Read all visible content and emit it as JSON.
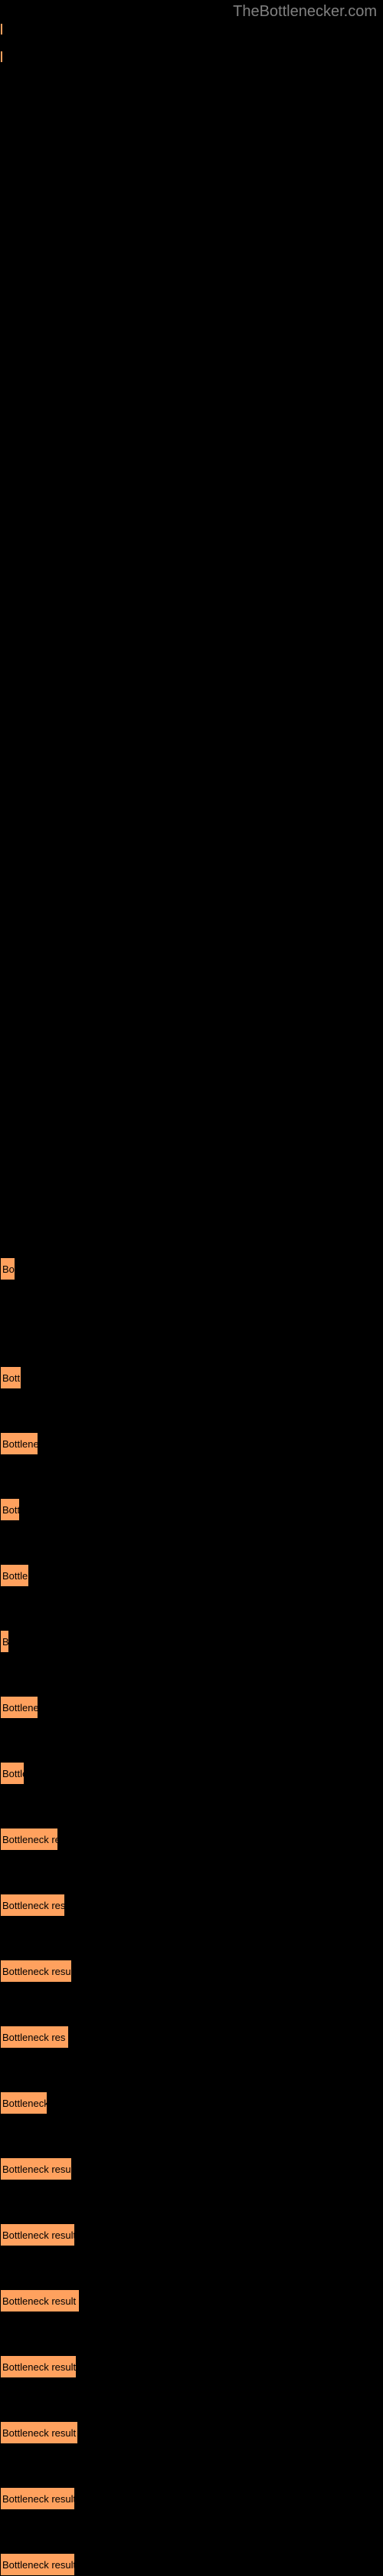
{
  "watermark": "TheBottlenecker.com",
  "chart": {
    "type": "bar",
    "background_color": "#000000",
    "bar_color": "#ffa15e",
    "bar_border_color": "#000000",
    "text_color": "#000000",
    "watermark_color": "#808080",
    "bars": [
      {
        "width": 4,
        "height": 16,
        "label": "",
        "margin_bottom": 20
      },
      {
        "width": 2,
        "height": 16,
        "label": "",
        "margin_bottom": 1558
      },
      {
        "width": 20,
        "height": 30,
        "label": "Bo",
        "margin_bottom": 112
      },
      {
        "width": 28,
        "height": 30,
        "label": "Bott",
        "margin_bottom": 56
      },
      {
        "width": 50,
        "height": 30,
        "label": "Bottlene",
        "margin_bottom": 56
      },
      {
        "width": 26,
        "height": 30,
        "label": "Bott",
        "margin_bottom": 56
      },
      {
        "width": 38,
        "height": 30,
        "label": "Bottle",
        "margin_bottom": 56
      },
      {
        "width": 12,
        "height": 30,
        "label": "B",
        "margin_bottom": 56
      },
      {
        "width": 50,
        "height": 30,
        "label": "Bottlene",
        "margin_bottom": 56
      },
      {
        "width": 32,
        "height": 30,
        "label": "Bottle",
        "margin_bottom": 56
      },
      {
        "width": 76,
        "height": 30,
        "label": "Bottleneck re",
        "margin_bottom": 56
      },
      {
        "width": 85,
        "height": 30,
        "label": "Bottleneck res",
        "margin_bottom": 56
      },
      {
        "width": 94,
        "height": 30,
        "label": "Bottleneck resu",
        "margin_bottom": 56
      },
      {
        "width": 90,
        "height": 30,
        "label": "Bottleneck res",
        "margin_bottom": 56
      },
      {
        "width": 62,
        "height": 30,
        "label": "Bottleneck",
        "margin_bottom": 56
      },
      {
        "width": 94,
        "height": 30,
        "label": "Bottleneck resu",
        "margin_bottom": 56
      },
      {
        "width": 98,
        "height": 30,
        "label": "Bottleneck result",
        "margin_bottom": 56
      },
      {
        "width": 104,
        "height": 30,
        "label": "Bottleneck result",
        "margin_bottom": 56
      },
      {
        "width": 100,
        "height": 30,
        "label": "Bottleneck result",
        "margin_bottom": 56
      },
      {
        "width": 102,
        "height": 30,
        "label": "Bottleneck result",
        "margin_bottom": 56
      },
      {
        "width": 98,
        "height": 30,
        "label": "Bottleneck result",
        "margin_bottom": 56
      },
      {
        "width": 98,
        "height": 30,
        "label": "Bottleneck result",
        "margin_bottom": 0
      }
    ]
  }
}
